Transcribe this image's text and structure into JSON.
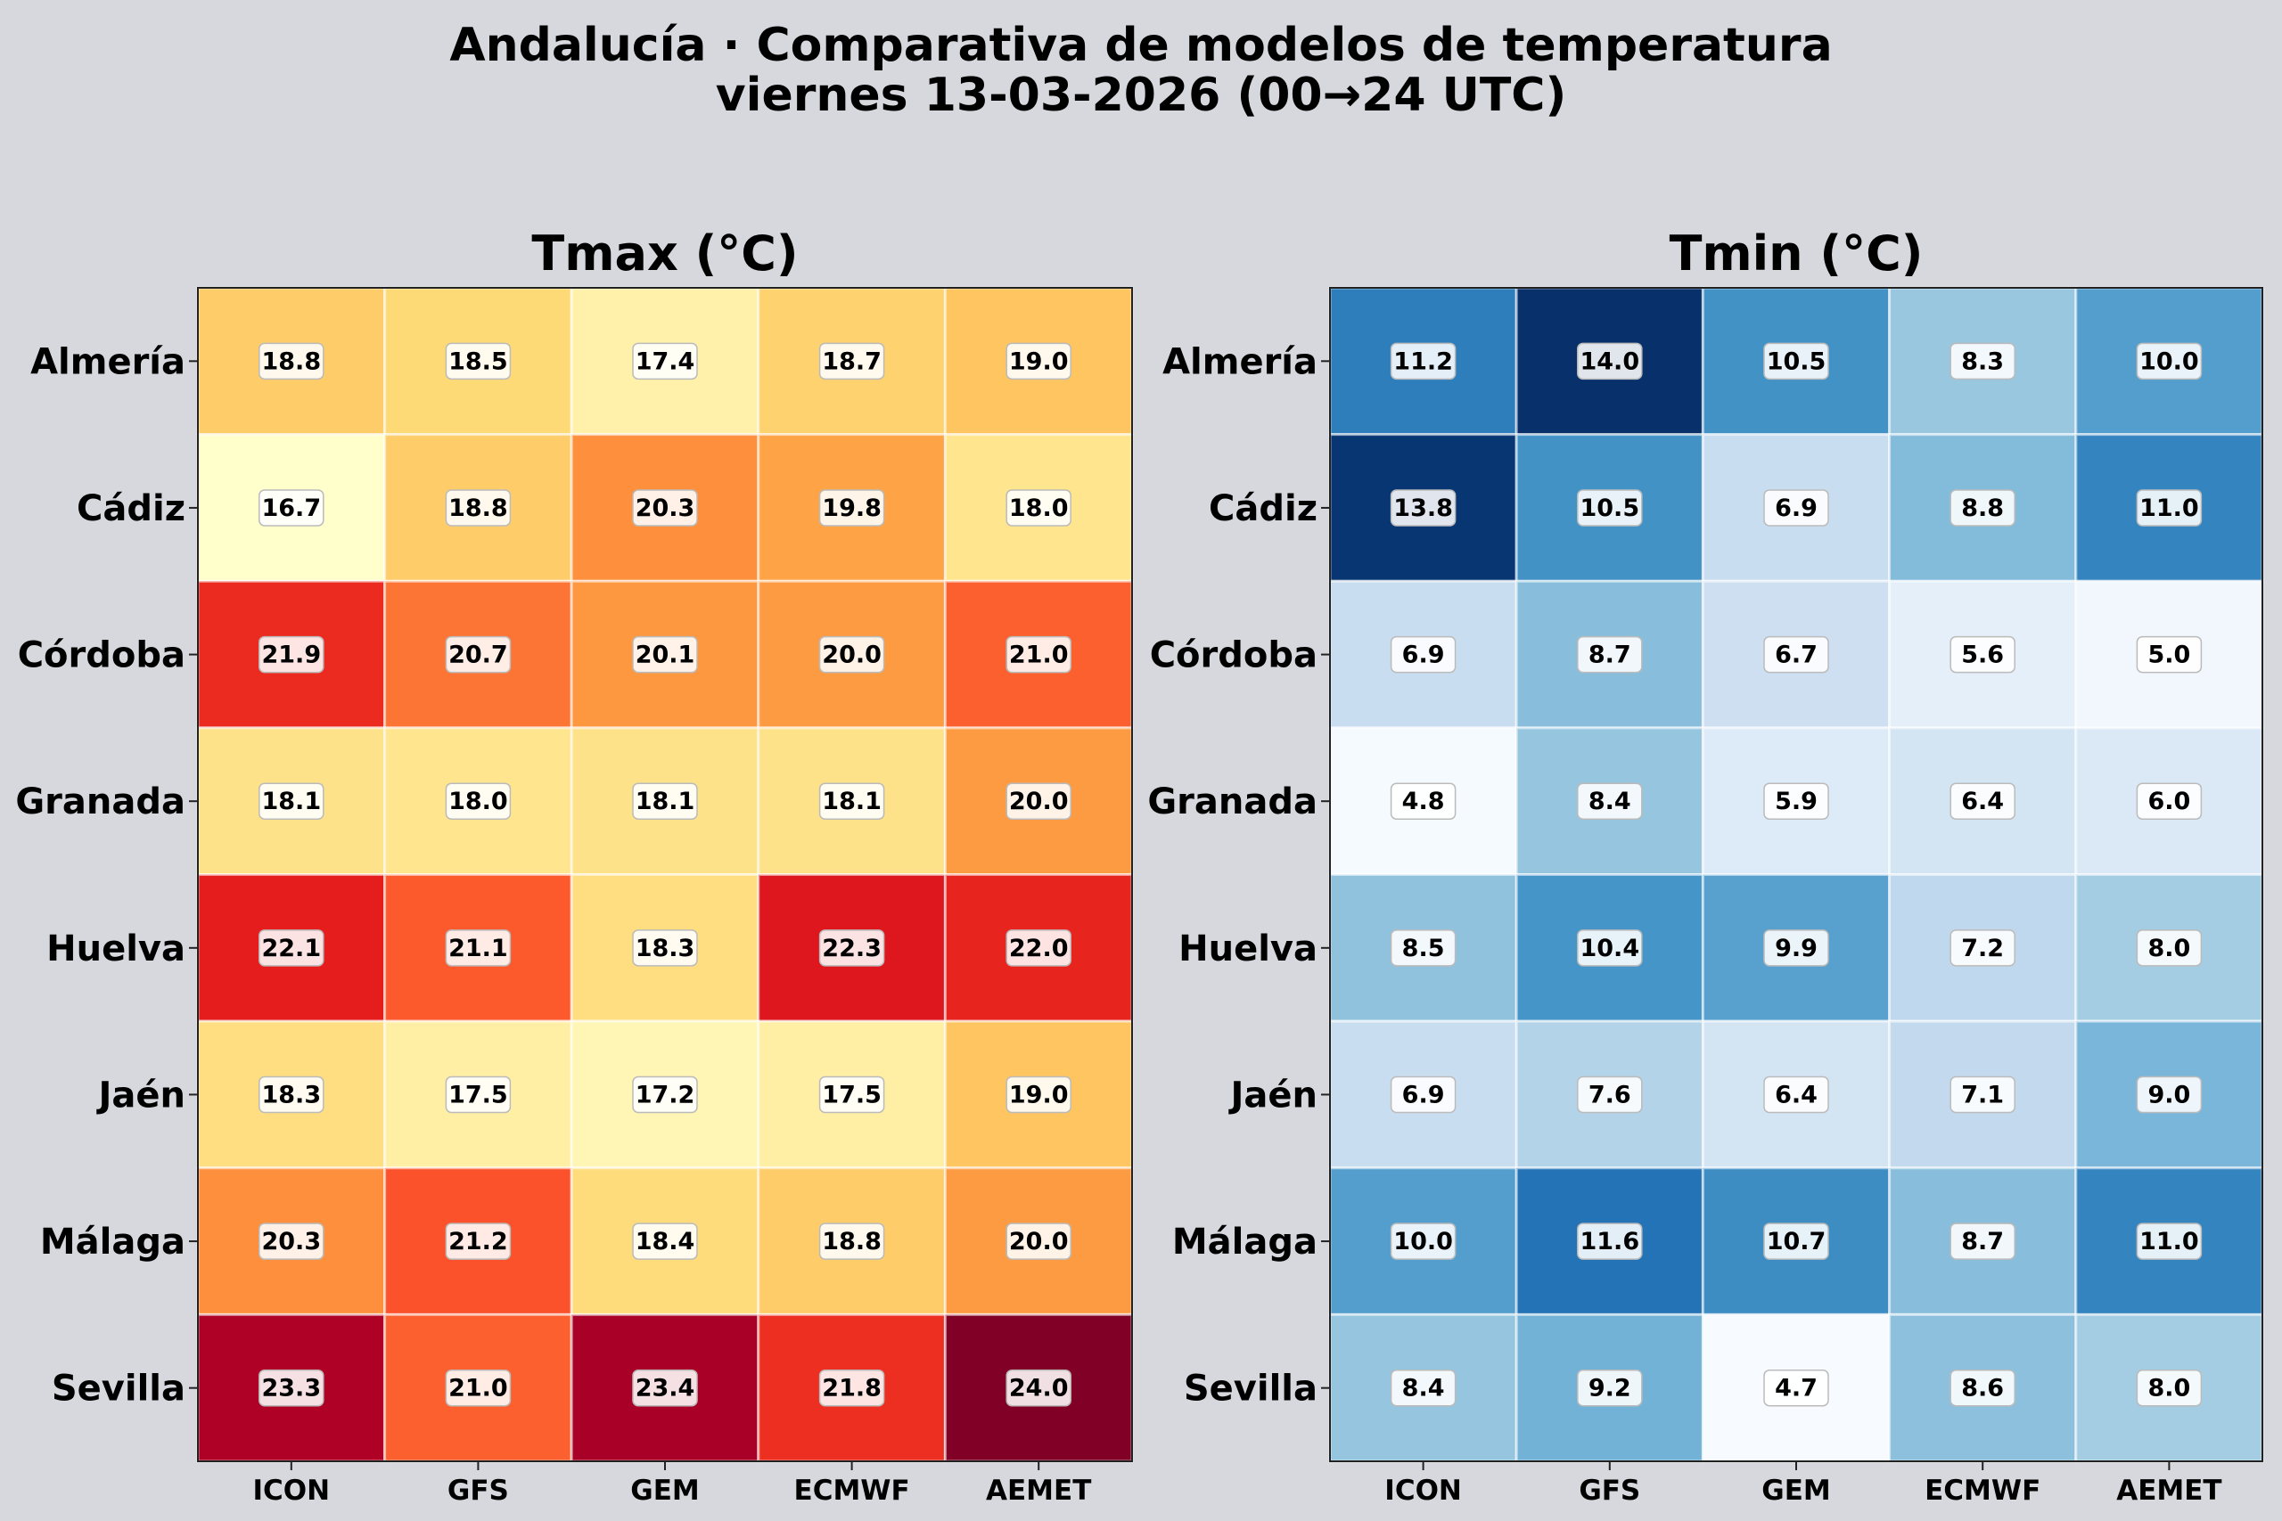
{
  "figure": {
    "title_line1": "Andalucía · Comparativa de modelos de temperatura",
    "title_line2": "viernes 13-03-2026 (00→24 UTC)"
  },
  "chart_data": [
    {
      "type": "heatmap",
      "title": "Tmax (°C)",
      "colormap": "YlOrRd",
      "color_range": [
        16.7,
        24.0
      ],
      "columns": [
        "ICON",
        "GFS",
        "GEM",
        "ECMWF",
        "AEMET"
      ],
      "rows": [
        "Almería",
        "Cádiz",
        "Córdoba",
        "Granada",
        "Huelva",
        "Jaén",
        "Málaga",
        "Sevilla"
      ],
      "values": [
        [
          18.8,
          18.5,
          17.4,
          18.7,
          19.0
        ],
        [
          16.7,
          18.8,
          20.3,
          19.8,
          18.0
        ],
        [
          21.9,
          20.7,
          20.1,
          20.0,
          21.0
        ],
        [
          18.1,
          18.0,
          18.1,
          18.1,
          20.0
        ],
        [
          22.1,
          21.1,
          18.3,
          22.3,
          22.0
        ],
        [
          18.3,
          17.5,
          17.2,
          17.5,
          19.0
        ],
        [
          20.3,
          21.2,
          18.4,
          18.8,
          20.0
        ],
        [
          23.3,
          21.0,
          23.4,
          21.8,
          24.0
        ]
      ]
    },
    {
      "type": "heatmap",
      "title": "Tmin (°C)",
      "colormap": "Blues",
      "color_range": [
        4.7,
        14.0
      ],
      "columns": [
        "ICON",
        "GFS",
        "GEM",
        "ECMWF",
        "AEMET"
      ],
      "rows": [
        "Almería",
        "Cádiz",
        "Córdoba",
        "Granada",
        "Huelva",
        "Jaén",
        "Málaga",
        "Sevilla"
      ],
      "values": [
        [
          11.2,
          14.0,
          10.5,
          8.3,
          10.0
        ],
        [
          13.8,
          10.5,
          6.9,
          8.8,
          11.0
        ],
        [
          6.9,
          8.7,
          6.7,
          5.6,
          5.0
        ],
        [
          4.8,
          8.4,
          5.9,
          6.4,
          6.0
        ],
        [
          8.5,
          10.4,
          9.9,
          7.2,
          8.0
        ],
        [
          6.9,
          7.6,
          6.4,
          7.1,
          9.0
        ],
        [
          10.0,
          11.6,
          10.7,
          8.7,
          11.0
        ],
        [
          8.4,
          9.2,
          4.7,
          8.6,
          8.0
        ]
      ]
    }
  ]
}
